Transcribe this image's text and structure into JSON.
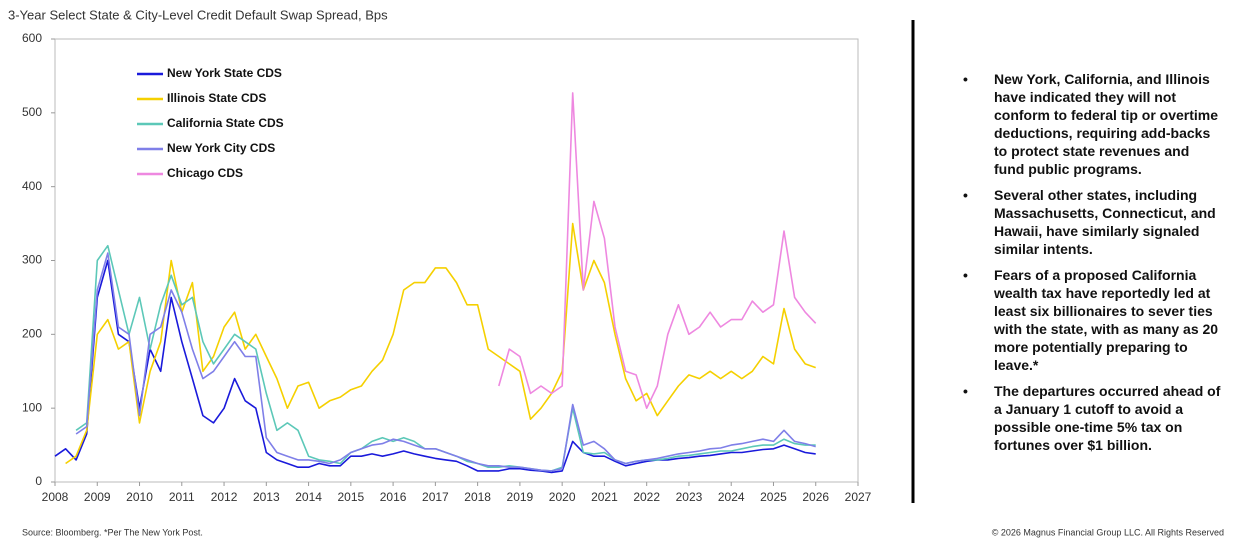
{
  "chart_data": {
    "type": "line",
    "title": "3-Year Select State & City-Level Credit Default Swap Spread, Bps",
    "x": [
      2008,
      2008.25,
      2008.5,
      2008.75,
      2009,
      2009.25,
      2009.5,
      2009.75,
      2010,
      2010.25,
      2010.5,
      2010.75,
      2011,
      2011.25,
      2011.5,
      2011.75,
      2012,
      2012.25,
      2012.5,
      2012.75,
      2013,
      2013.25,
      2013.5,
      2013.75,
      2014,
      2014.25,
      2014.5,
      2014.75,
      2015,
      2015.25,
      2015.5,
      2015.75,
      2016,
      2016.25,
      2016.5,
      2016.75,
      2017,
      2017.25,
      2017.5,
      2017.75,
      2018,
      2018.25,
      2018.5,
      2018.75,
      2019,
      2019.25,
      2019.5,
      2019.75,
      2020,
      2020.25,
      2020.5,
      2020.75,
      2021,
      2021.25,
      2021.5,
      2021.75,
      2022,
      2022.25,
      2022.5,
      2022.75,
      2023,
      2023.25,
      2023.5,
      2023.75,
      2024,
      2024.25,
      2024.5,
      2024.75,
      2025,
      2025.25,
      2025.5,
      2025.75,
      2026
    ],
    "series": [
      {
        "name": "New York State CDS",
        "color": "#1a1adb",
        "values": [
          35,
          45,
          30,
          65,
          250,
          300,
          200,
          190,
          100,
          180,
          150,
          250,
          190,
          140,
          90,
          80,
          100,
          140,
          110,
          100,
          40,
          30,
          25,
          20,
          20,
          25,
          22,
          22,
          35,
          35,
          38,
          35,
          38,
          42,
          38,
          35,
          32,
          30,
          28,
          22,
          15,
          15,
          15,
          18,
          18,
          16,
          15,
          13,
          15,
          55,
          40,
          35,
          35,
          28,
          22,
          25,
          28,
          30,
          30,
          32,
          33,
          35,
          36,
          38,
          40,
          40,
          42,
          44,
          45,
          50,
          45,
          40,
          38
        ]
      },
      {
        "name": "Illinois State CDS",
        "color": "#f5d000",
        "values": [
          null,
          25,
          35,
          70,
          200,
          220,
          180,
          190,
          80,
          150,
          190,
          300,
          230,
          270,
          150,
          170,
          210,
          230,
          180,
          200,
          170,
          140,
          100,
          130,
          135,
          100,
          110,
          115,
          125,
          130,
          150,
          165,
          200,
          260,
          270,
          270,
          290,
          290,
          270,
          240,
          240,
          180,
          170,
          160,
          150,
          85,
          100,
          120,
          150,
          350,
          260,
          300,
          270,
          200,
          140,
          110,
          120,
          90,
          110,
          130,
          145,
          140,
          150,
          140,
          150,
          140,
          150,
          170,
          160,
          235,
          180,
          160,
          155
        ]
      },
      {
        "name": "California State CDS",
        "color": "#5cc8b8",
        "values": [
          null,
          null,
          70,
          80,
          300,
          320,
          260,
          200,
          250,
          180,
          240,
          280,
          240,
          250,
          190,
          160,
          180,
          200,
          190,
          180,
          120,
          70,
          80,
          70,
          35,
          30,
          28,
          25,
          40,
          45,
          55,
          60,
          55,
          60,
          55,
          45,
          45,
          40,
          35,
          28,
          25,
          20,
          20,
          22,
          20,
          18,
          16,
          15,
          20,
          100,
          40,
          38,
          40,
          30,
          25,
          28,
          30,
          30,
          32,
          35,
          36,
          38,
          40,
          42,
          42,
          45,
          48,
          50,
          50,
          58,
          52,
          50,
          50
        ]
      },
      {
        "name": "New York City CDS",
        "color": "#7f7fe8",
        "values": [
          null,
          null,
          65,
          75,
          260,
          310,
          210,
          200,
          90,
          200,
          210,
          260,
          230,
          180,
          140,
          150,
          170,
          190,
          170,
          170,
          60,
          40,
          35,
          30,
          30,
          28,
          25,
          30,
          40,
          45,
          50,
          52,
          58,
          55,
          50,
          45,
          45,
          40,
          35,
          30,
          25,
          22,
          22,
          20,
          20,
          18,
          16,
          15,
          18,
          105,
          50,
          55,
          45,
          30,
          25,
          28,
          30,
          32,
          35,
          38,
          40,
          42,
          45,
          46,
          50,
          52,
          55,
          58,
          55,
          70,
          55,
          52,
          48
        ]
      },
      {
        "name": "Chicago CDS",
        "color": "#ee88e0",
        "values": [
          null,
          null,
          null,
          null,
          null,
          null,
          null,
          null,
          null,
          null,
          null,
          null,
          null,
          null,
          null,
          null,
          null,
          null,
          null,
          null,
          null,
          null,
          null,
          null,
          null,
          null,
          null,
          null,
          null,
          null,
          null,
          null,
          null,
          null,
          null,
          null,
          null,
          null,
          null,
          null,
          null,
          null,
          130,
          180,
          170,
          120,
          130,
          120,
          130,
          527,
          260,
          380,
          330,
          210,
          150,
          145,
          100,
          130,
          200,
          240,
          200,
          210,
          230,
          210,
          220,
          220,
          245,
          230,
          240,
          340,
          250,
          230,
          215
        ]
      }
    ],
    "xlim": [
      2008,
      2027
    ],
    "xticks": [
      2008,
      2009,
      2010,
      2011,
      2012,
      2013,
      2014,
      2015,
      2016,
      2017,
      2018,
      2019,
      2020,
      2021,
      2022,
      2023,
      2024,
      2025,
      2026,
      2027
    ],
    "ylim": [
      0,
      600
    ],
    "yticks": [
      0,
      100,
      200,
      300,
      400,
      500,
      600
    ],
    "grid": false,
    "legend": "top-left",
    "source": "Source: Bloomberg. *Per The New York Post.",
    "copyright": "© 2026 Magnus Financial Group LLC. All Rights Reserved",
    "bullets": [
      "New York, California, and Illinois have indicated they will not conform to federal tip or overtime deductions, requiring add-backs to protect state revenues and fund public programs.",
      "Several other states, including Massachusetts, Connecticut, and Hawaii, have similarly signaled similar intents.",
      "Fears of a proposed California wealth tax have reportedly led at least six billionaires to sever ties with the state, with as many as 20 more potentially preparing to leave.*",
      "The departures occurred ahead of a January 1 cutoff to avoid a possible one-time 5% tax on fortunes over $1 billion."
    ]
  }
}
